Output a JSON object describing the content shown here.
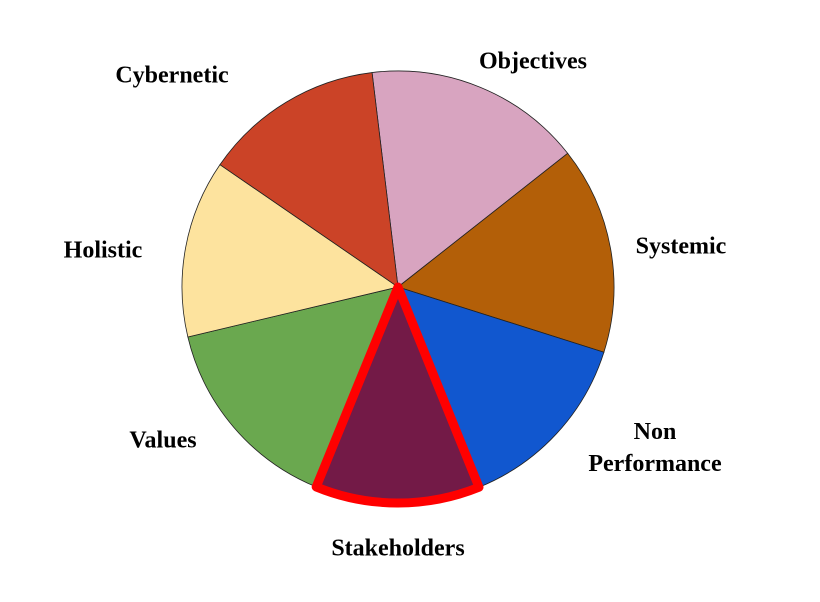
{
  "chart_data": {
    "type": "pie",
    "categories": [
      "Objectives",
      "Systemic",
      "Non Performance",
      "Stakeholders",
      "Values",
      "Holistic",
      "Cybernetic"
    ],
    "values": [
      16.3,
      15.5,
      14,
      12.3,
      15.1,
      13.3,
      13.5
    ],
    "colors": [
      "#d8a4c0",
      "#b35f08",
      "#1157cf",
      "#731a47",
      "#6aa84f",
      "#fde39e",
      "#cb4327"
    ],
    "highlight": 3,
    "highlight_color": "#ff0000"
  }
}
